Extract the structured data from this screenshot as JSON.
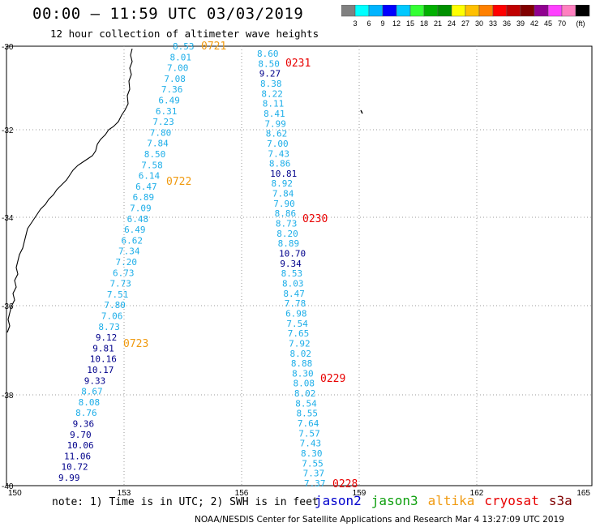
{
  "title": "00:00 – 11:59 UTC 03/03/2019",
  "subtitle": "12 hour collection of altimeter wave heights",
  "colorbar": {
    "colors": [
      "#808080",
      "#00ffff",
      "#00b4ff",
      "#0000ff",
      "#00c8ff",
      "#33ff33",
      "#00b000",
      "#009000",
      "#ffff00",
      "#ffc000",
      "#ff8000",
      "#ff0000",
      "#c00000",
      "#800000",
      "#900090",
      "#ff40ff",
      "#ff80c0",
      "#000000"
    ],
    "labels": [
      "3",
      "6",
      "9",
      "12",
      "15",
      "18",
      "21",
      "24",
      "27",
      "30",
      "33",
      "36",
      "39",
      "42",
      "45",
      "70",
      "(ft)"
    ]
  },
  "map": {
    "lon_ticks": [
      "150",
      "153",
      "156",
      "159",
      "162",
      "165"
    ],
    "lat_ticks": [
      "-30",
      "-32",
      "-34",
      "-36",
      "-38",
      "-40"
    ]
  },
  "colors": {
    "light_blue": "#1eaee8",
    "dark_blue": "#00008b",
    "altika": "#f09a10",
    "cryosat": "#e80000",
    "jason3": "#10a010"
  },
  "track_west": {
    "values": [
      "8.53",
      "8.01",
      "7.00",
      "7.08",
      "7.36",
      "6.49",
      "6.31",
      "7.23",
      "7.80",
      "7.84",
      "8.50",
      "7.58",
      "6.14",
      "6.47",
      "6.89",
      "7.09",
      "6.48",
      "6.49",
      "6.62",
      "7.34",
      "7.20",
      "6.73",
      "7.73",
      "7.51",
      "7.80",
      "7.06",
      "8.73",
      "9.12",
      "9.81",
      "10.16",
      "10.17",
      "9.33",
      "8.67",
      "8.08",
      "8.76",
      "9.36",
      "9.70",
      "10.06",
      "11.06",
      "10.72",
      "9.99"
    ],
    "times": [
      "0721",
      "0722",
      "0723"
    ]
  },
  "track_east": {
    "values": [
      "8.60",
      "8.50",
      "9.27",
      "8.38",
      "8.22",
      "8.11",
      "8.41",
      "7.99",
      "8.62",
      "7.00",
      "7.43",
      "8.86",
      "10.81",
      "8.92",
      "7.84",
      "7.90",
      "8.86",
      "8.73",
      "8.20",
      "8.89",
      "10.70",
      "9.34",
      "8.53",
      "8.03",
      "8.47",
      "7.78",
      "6.98",
      "7.54",
      "7.65",
      "7.92",
      "8.02",
      "8.88",
      "8.30",
      "8.08",
      "8.02",
      "8.54",
      "8.55",
      "7.64",
      "7.57",
      "7.43",
      "8.30",
      "7.55",
      "7.37",
      "7.37"
    ],
    "times": [
      "0231",
      "0230",
      "0229",
      "0228"
    ]
  },
  "footer_note": "note:  1) Time is in UTC;  2) SWH is in feet",
  "satellites": [
    "jason2",
    "jason3",
    "altika",
    "cryosat",
    "s3a"
  ],
  "credit": "NOAA/NESDIS Center for Satellite Applications and Research    Mar  4 13:27:09 UTC 2019"
}
